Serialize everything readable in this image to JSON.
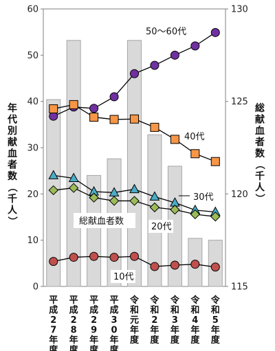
{
  "chart_data": {
    "type": "bar+line",
    "categories": [
      "平成27年度",
      "平成28年度",
      "平成29年度",
      "平成30年度",
      "令和元年度",
      "令和2年度",
      "令和3年度",
      "令和4年度",
      "令和5年度"
    ],
    "bar_series": {
      "name": "総献血者数",
      "axis": "right",
      "color": "#d9d9d9",
      "stroke": "#a6a6a6",
      "values": [
        125.1,
        128.3,
        121.0,
        121.9,
        128.3,
        123.2,
        121.5,
        117.6,
        117.5
      ]
    },
    "line_series": [
      {
        "name": "50〜60代",
        "axis": "left",
        "color": "#7030a0",
        "marker": "circle",
        "values": [
          36.8,
          38.8,
          38.5,
          41.0,
          46.0,
          47.8,
          50.0,
          52.0,
          54.9
        ]
      },
      {
        "name": "40代",
        "axis": "left",
        "color": "#f79646",
        "marker": "square",
        "values": [
          38.4,
          39.3,
          36.6,
          36.1,
          36.2,
          34.4,
          31.8,
          28.7,
          27.0
        ]
      },
      {
        "name": "30代",
        "axis": "left",
        "color": "#4bacc6",
        "marker": "triangle",
        "values": [
          24.0,
          23.4,
          20.5,
          20.3,
          21.0,
          19.4,
          18.1,
          16.5,
          16.1
        ]
      },
      {
        "name": "20代",
        "axis": "left",
        "color": "#9bbb59",
        "marker": "diamond",
        "values": [
          20.8,
          21.3,
          19.2,
          18.5,
          18.5,
          17.1,
          16.6,
          15.6,
          15.1
        ]
      },
      {
        "name": "10代",
        "axis": "left",
        "color": "#c0504d",
        "marker": "circle",
        "values": [
          5.4,
          6.3,
          6.5,
          6.3,
          6.5,
          4.3,
          4.6,
          4.8,
          4.2
        ]
      }
    ],
    "ylabel": "年代別献血者数（千人）",
    "y2label": "総献血者数（千人）",
    "ylim": [
      0,
      60
    ],
    "y2lim": [
      115,
      130
    ],
    "yticks": [
      "0",
      "10",
      "20",
      "30",
      "40",
      "50",
      "60"
    ],
    "y2ticks": [
      "115",
      "120",
      "125",
      "130"
    ],
    "annotations": {
      "total": "総献血者数",
      "s50": "50〜60代",
      "s40": "40代",
      "s30": "30代",
      "s20": "20代",
      "s10": "10代"
    },
    "grid": false,
    "legend": "none"
  }
}
